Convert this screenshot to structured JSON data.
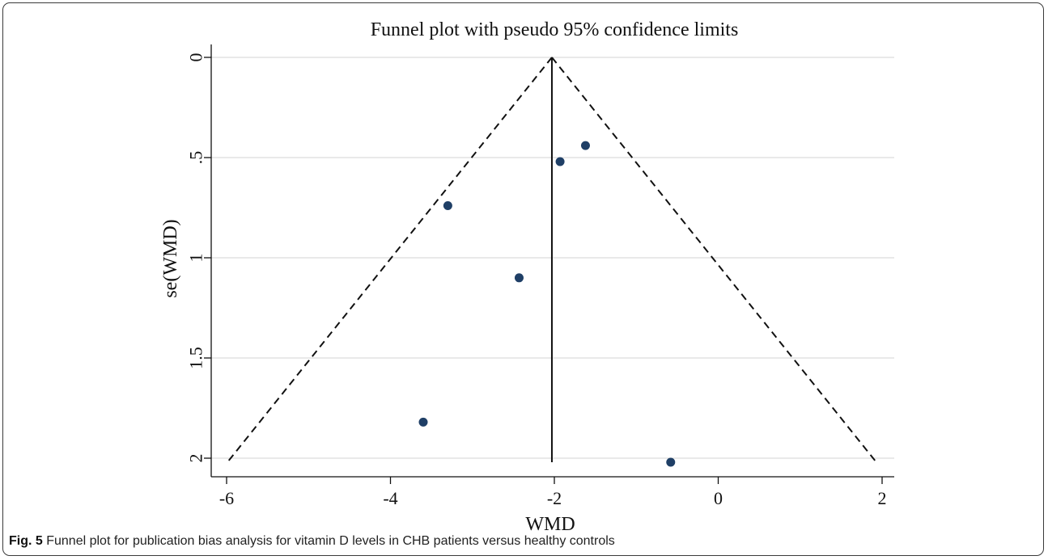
{
  "chart_data": {
    "type": "scatter",
    "title": "Funnel plot with pseudo 95% confidence limits",
    "xlabel": "WMD",
    "ylabel": "se(WMD)",
    "xlim": [
      -6.2,
      2.1
    ],
    "ylim": [
      0,
      2.04
    ],
    "y_reversed": true,
    "x_ticks": [
      "-6",
      "-4",
      "-2",
      "0",
      "2"
    ],
    "x_tick_values": [
      -6,
      -4,
      -2,
      0,
      2
    ],
    "y_ticks": [
      "0",
      ".5",
      "1",
      "1.5",
      "2"
    ],
    "y_tick_values": [
      0,
      0.5,
      1,
      1.5,
      2
    ],
    "grid": "horizontal",
    "pooled_estimate": -2.03,
    "se_max": 2.02,
    "points": [
      {
        "x": -1.62,
        "y": 0.44
      },
      {
        "x": -1.93,
        "y": 0.52
      },
      {
        "x": -3.3,
        "y": 0.74
      },
      {
        "x": -2.43,
        "y": 1.1
      },
      {
        "x": -3.6,
        "y": 1.82
      },
      {
        "x": -0.58,
        "y": 2.02
      }
    ],
    "colors": {
      "points": "#1f3f66",
      "lines": "#111111",
      "grid": "#dcdcdc"
    }
  },
  "caption": {
    "label": "Fig. 5",
    "text": " Funnel plot for publication bias analysis for vitamin D levels in CHB patients versus healthy controls"
  }
}
